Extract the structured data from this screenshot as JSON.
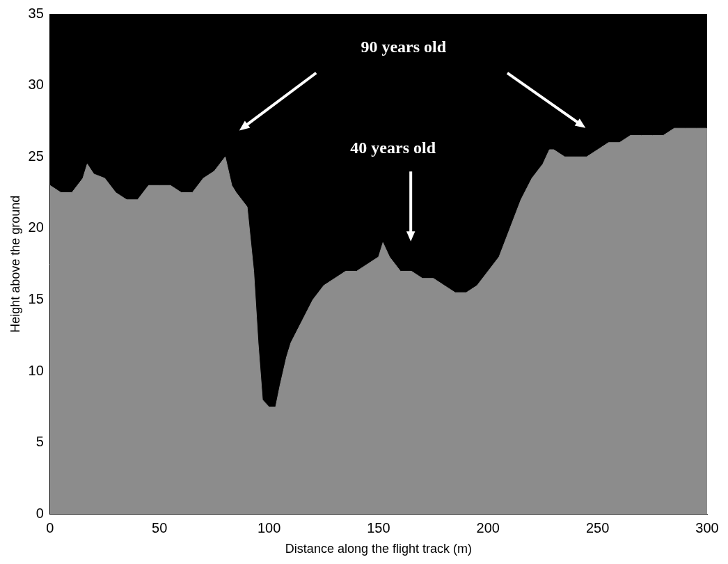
{
  "chart_data": {
    "type": "area",
    "x_label": "Distance along the flight track (m)",
    "y_label": "Height above the ground",
    "annotations": [
      "90 years old",
      "40 years old"
    ],
    "x": [
      0,
      5,
      10,
      15,
      17,
      20,
      25,
      30,
      35,
      40,
      45,
      50,
      55,
      60,
      65,
      70,
      75,
      80,
      83,
      85,
      90,
      93,
      95,
      97,
      100,
      103,
      105,
      108,
      110,
      115,
      120,
      125,
      130,
      135,
      140,
      145,
      150,
      152,
      155,
      160,
      165,
      170,
      175,
      180,
      185,
      190,
      195,
      200,
      205,
      210,
      215,
      220,
      225,
      228,
      230,
      235,
      240,
      245,
      250,
      255,
      260,
      265,
      270,
      275,
      280,
      285,
      290,
      295,
      300
    ],
    "values": [
      23,
      22.5,
      22.5,
      23.5,
      24.5,
      23.8,
      23.5,
      22.5,
      22,
      22,
      23,
      23,
      23,
      22.5,
      22.5,
      23.5,
      24,
      25,
      23,
      22.5,
      21.5,
      17,
      12,
      8,
      7.5,
      7.5,
      9,
      11,
      12,
      13.5,
      15,
      16,
      16.5,
      17,
      17,
      17.5,
      18,
      19,
      18,
      17,
      17,
      16.5,
      16.5,
      16,
      15.5,
      15.5,
      16,
      17,
      18,
      20,
      22,
      23.5,
      24.5,
      25.5,
      25.5,
      25,
      25,
      25,
      25.5,
      26,
      26,
      26.5,
      26.5,
      26.5,
      26.5,
      27,
      27,
      27,
      27
    ],
    "color": "#8c8c8c",
    "xlim": [
      0,
      300
    ],
    "xticks": [
      0,
      50,
      100,
      150,
      200,
      250,
      300
    ],
    "ylim": [
      0,
      35
    ],
    "yticks": [
      0,
      5,
      10,
      15,
      20,
      25,
      30,
      35
    ],
    "grid": false
  }
}
